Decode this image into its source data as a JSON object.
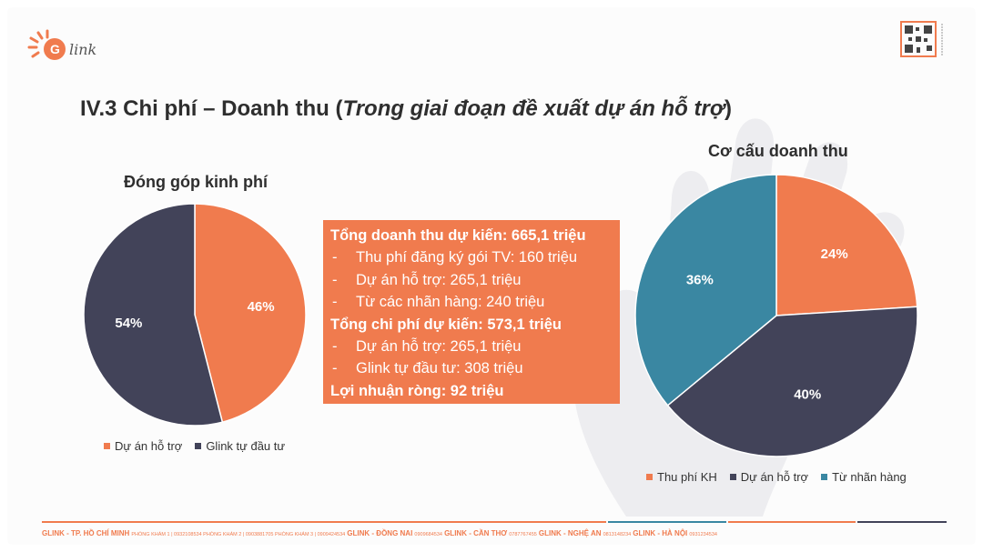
{
  "brand": {
    "logo_text": "link"
  },
  "title": {
    "main": "IV.3 Chi phí – Doanh thu (",
    "italic": "Trong giai đoạn đề xuất dự án hỗ trợ",
    "close": ")"
  },
  "colors": {
    "orange": "#f07b4e",
    "navy": "#424359",
    "teal": "#3a87a2"
  },
  "chart_data": [
    {
      "type": "pie",
      "title": "Đóng góp kinh phí",
      "categories": [
        "Dự án hỗ trợ",
        "Glink tự đầu tư"
      ],
      "values": [
        46,
        54
      ],
      "labels": [
        "46%",
        "54%"
      ],
      "colors": [
        "#f07b4e",
        "#424359"
      ],
      "legend_position": "bottom"
    },
    {
      "type": "pie",
      "title": "Cơ cấu doanh thu",
      "categories": [
        "Thu phí KH",
        "Dự án hỗ trợ",
        "Từ nhãn hàng"
      ],
      "values": [
        24,
        40,
        36
      ],
      "labels": [
        "24%",
        "40%",
        "36%"
      ],
      "colors": [
        "#f07b4e",
        "#424359",
        "#3a87a2"
      ],
      "legend_position": "bottom"
    }
  ],
  "summary": {
    "revenue_total": "Tổng doanh thu dự kiến: 665,1 triệu",
    "revenue_items": [
      "Thu phí đăng ký gói TV: 160 triệu",
      "Dự án hỗ trợ: 265,1 triệu",
      "Từ các nhãn hàng: 240 triệu"
    ],
    "cost_total": "Tổng chi phí dự kiến: 573,1 triệu",
    "cost_items": [
      "Dự án hỗ trợ: 265,1 triệu",
      "Glink tự đầu tư: 308 triệu"
    ],
    "profit": "Lợi nhuận ròng: 92 triệu",
    "dash": "-"
  },
  "footer": {
    "hcm": "GLINK - TP. HỒ CHÍ MINH",
    "hcm_info": "PHÒNG KHÁM 1 | 0932108534  PHÒNG KHÁM 2 | 0903881705  PHÒNG KHÁM 3 | 0909424534",
    "dongnai": "GLINK - ĐỒNG NAI",
    "dongnai_info": "0909684534",
    "cantho": "GLINK - CẦN THƠ",
    "cantho_info": "0787767455",
    "nghean": "GLINK - NGHỆ AN",
    "nghean_info": "0813148234",
    "hanoi": "GLINK - HÀ NỘI",
    "hanoi_info": "0931234534"
  }
}
